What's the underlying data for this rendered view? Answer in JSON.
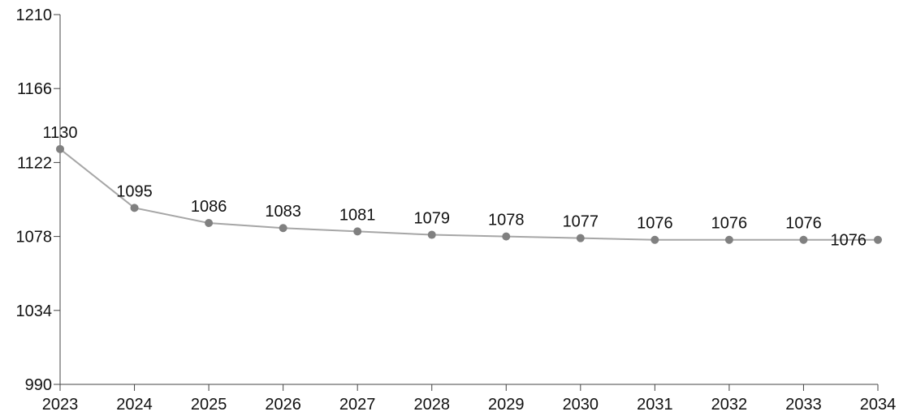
{
  "chart_data": {
    "type": "line",
    "title": "",
    "xlabel": "",
    "ylabel": "",
    "x": [
      "2023",
      "2024",
      "2025",
      "2026",
      "2027",
      "2028",
      "2029",
      "2030",
      "2031",
      "2032",
      "2033",
      "2034"
    ],
    "series": [
      {
        "values": [
          1130,
          1095,
          1086,
          1083,
          1081,
          1079,
          1078,
          1077,
          1076,
          1076,
          1076,
          1076
        ]
      }
    ],
    "data_labels": [
      "1130",
      "1095",
      "1086",
      "1083",
      "1081",
      "1079",
      "1078",
      "1077",
      "1076",
      "1076",
      "1076",
      "1076"
    ],
    "ylim": [
      990,
      1210
    ],
    "yticks": [
      990,
      1034,
      1078,
      1122,
      1166,
      1210
    ],
    "ytick_labels": [
      "990",
      "1034",
      "1078",
      "1122",
      "1166",
      "1210"
    ],
    "grid": false,
    "legend": "none",
    "colors": {
      "line": "#a6a6a6",
      "marker": "#808080",
      "axis": "#444444",
      "text": "#111111"
    }
  }
}
